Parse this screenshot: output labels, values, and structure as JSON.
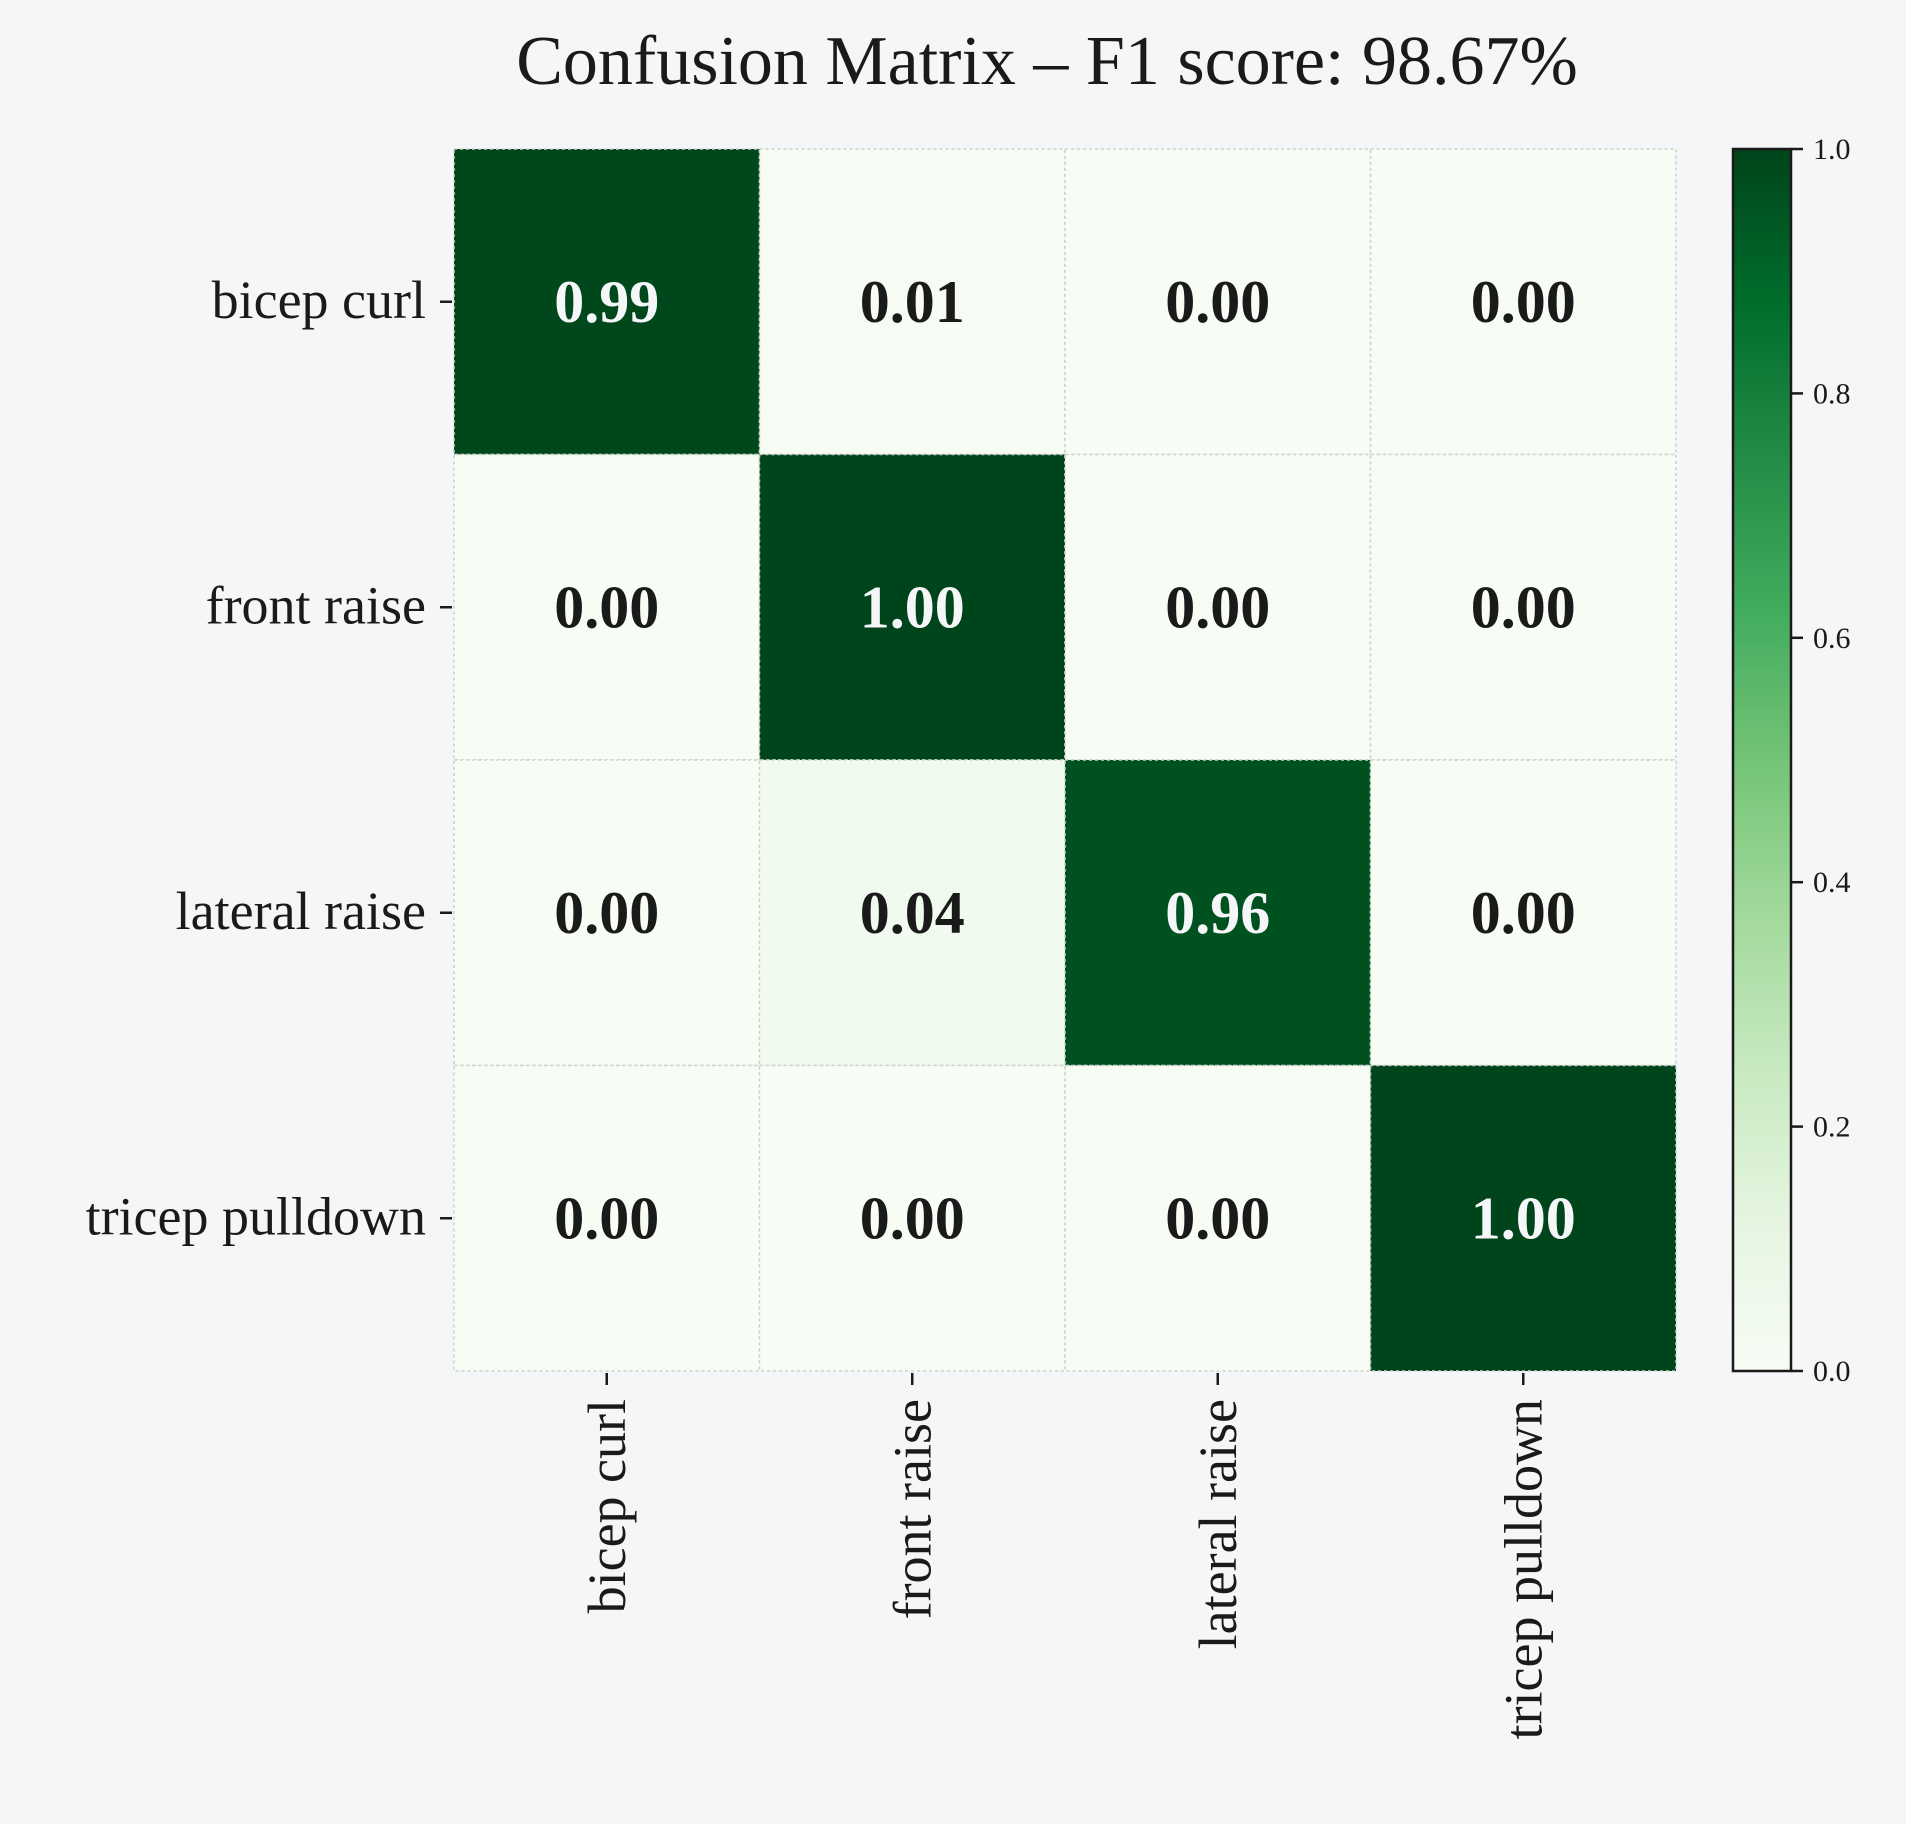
{
  "chart_data": {
    "type": "heatmap",
    "title": "Confusion Matrix – F1 score: 98.67%",
    "xlabel": "",
    "ylabel": "",
    "row_labels": [
      "bicep curl",
      "front raise",
      "lateral raise",
      "tricep pulldown"
    ],
    "col_labels": [
      "bicep curl",
      "front raise",
      "lateral raise",
      "tricep pulldown"
    ],
    "values": [
      [
        0.99,
        0.01,
        0.0,
        0.0
      ],
      [
        0.0,
        1.0,
        0.0,
        0.0
      ],
      [
        0.0,
        0.04,
        0.96,
        0.0
      ],
      [
        0.0,
        0.0,
        0.0,
        1.0
      ]
    ],
    "cell_labels": [
      [
        "0.99",
        "0.01",
        "0.00",
        "0.00"
      ],
      [
        "0.00",
        "1.00",
        "0.00",
        "0.00"
      ],
      [
        "0.00",
        "0.04",
        "0.96",
        "0.00"
      ],
      [
        "0.00",
        "0.00",
        "0.00",
        "1.00"
      ]
    ],
    "value_range": [
      0,
      1
    ],
    "colormap": "Greens",
    "colorbar_ticks": [
      "0.0",
      "0.2",
      "0.4",
      "0.6",
      "0.8",
      "1.0"
    ],
    "colorbar_tick_values": [
      0.0,
      0.2,
      0.4,
      0.6,
      0.8,
      1.0
    ],
    "grid": true,
    "colorbar_position": "right",
    "colors": {
      "background": "#f5f6f8",
      "text_dark": "#1a1a1a",
      "text_light": "#f5f6f8",
      "cmap_low": "#f7fcf5",
      "cmap_high": "#00441b"
    }
  }
}
